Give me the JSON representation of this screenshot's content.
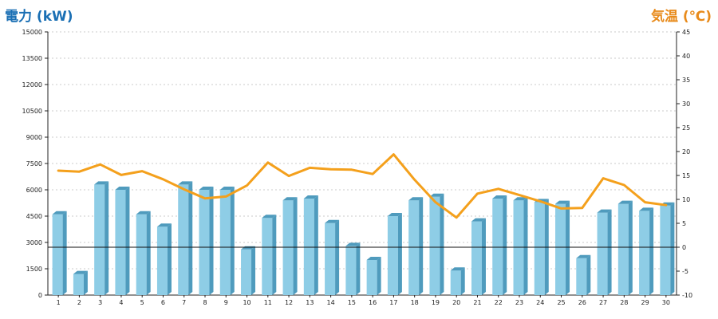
{
  "chart_data": {
    "type": "bar",
    "ylabel_left": "電力 (kW)",
    "ylabel_right": "気温 (℃)",
    "categories": [
      "1",
      "2",
      "3",
      "4",
      "5",
      "6",
      "7",
      "8",
      "9",
      "10",
      "11",
      "12",
      "13",
      "14",
      "15",
      "16",
      "17",
      "18",
      "19",
      "20",
      "21",
      "22",
      "23",
      "24",
      "25",
      "26",
      "27",
      "28",
      "29",
      "30"
    ],
    "series": [
      {
        "axis": "left",
        "type": "bar",
        "values": [
          4600,
          1200,
          6300,
          6000,
          4600,
          3900,
          6300,
          6000,
          6000,
          2600,
          4400,
          5400,
          5500,
          4100,
          2800,
          2000,
          4500,
          5400,
          5600,
          1400,
          4200,
          5500,
          5400,
          5300,
          5200,
          2100,
          4700,
          5200,
          4800,
          5100
        ]
      },
      {
        "axis": "right",
        "type": "line",
        "values": [
          16,
          15.8,
          17.3,
          15.1,
          15.9,
          14.2,
          12.1,
          10.2,
          10.6,
          12.9,
          17.7,
          14.9,
          16.6,
          16.3,
          16.2,
          15.3,
          19.4,
          14.1,
          9.4,
          6.2,
          11.2,
          12.2,
          10.9,
          9.6,
          8.1,
          8.2,
          14.4,
          13,
          9.4,
          8.8
        ]
      }
    ],
    "yleft": {
      "ylim": [
        0,
        15000
      ],
      "ticks": [
        0,
        1500,
        3000,
        4500,
        6000,
        7500,
        9000,
        10500,
        12000,
        13500,
        15000
      ]
    },
    "yright": {
      "ylim": [
        -10,
        45
      ],
      "ticks": [
        -10,
        -5,
        0,
        5,
        10,
        15,
        20,
        25,
        30,
        35,
        40,
        45
      ]
    },
    "grid": true,
    "colors": {
      "bar_front": "#8ecde6",
      "bar_side": "#4f9bbd",
      "bar_top": "#b9e1f1",
      "line": "#f4a01c",
      "grid": "#bbbbbb",
      "zero_line": "#111111",
      "left_title": "#1a6fb4",
      "right_title": "#e88a1a"
    }
  }
}
